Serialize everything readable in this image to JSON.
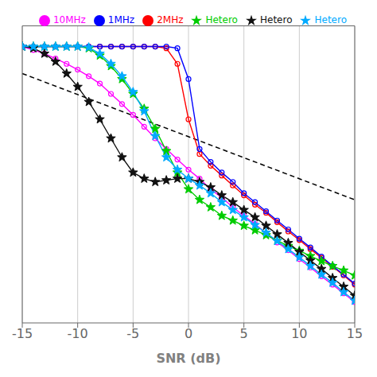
{
  "chart_data": {
    "type": "line",
    "xlabel": "SNR (dB)",
    "x": [
      -15,
      -14,
      -13,
      -12,
      -11,
      -10,
      -9,
      -8,
      -7,
      -6,
      -5,
      -4,
      -3,
      -2,
      -1,
      0,
      1,
      2,
      3,
      4,
      5,
      6,
      7,
      8,
      9,
      10,
      11,
      12,
      13,
      14,
      15
    ],
    "xlim": [
      -15,
      15
    ],
    "xticks": [
      -15,
      -10,
      -5,
      0,
      5,
      10,
      15
    ],
    "ylim": [
      0.03,
      5.0
    ],
    "yticks": [],
    "log": "y",
    "grid": true,
    "legend": "upper right",
    "tick_labels": "x",
    "series": [
      {
        "name": "10MHz",
        "color": "#ff00ff",
        "marker": "circle",
        "values": [
          3.5,
          3.3,
          3.1,
          2.85,
          2.6,
          2.35,
          2.1,
          1.85,
          1.55,
          1.3,
          1.08,
          0.88,
          0.72,
          0.6,
          0.5,
          0.42,
          0.36,
          0.3,
          0.26,
          0.22,
          0.19,
          0.165,
          0.14,
          0.12,
          0.105,
          0.09,
          0.078,
          0.067,
          0.058,
          0.05,
          0.043
        ]
      },
      {
        "name": "2MHz",
        "color": "#ff0000",
        "marker": "circle",
        "values": [
          3.5,
          3.5,
          3.5,
          3.5,
          3.5,
          3.5,
          3.5,
          3.5,
          3.5,
          3.5,
          3.5,
          3.5,
          3.5,
          3.4,
          2.6,
          1.0,
          0.55,
          0.45,
          0.38,
          0.32,
          0.27,
          0.23,
          0.2,
          0.17,
          0.145,
          0.125,
          0.107,
          0.092,
          0.079,
          0.068,
          0.058
        ]
      },
      {
        "name": "1MHz",
        "color": "#0000ff",
        "marker": "circle",
        "values": [
          3.5,
          3.5,
          3.5,
          3.5,
          3.5,
          3.5,
          3.5,
          3.5,
          3.5,
          3.5,
          3.5,
          3.5,
          3.5,
          3.5,
          3.4,
          2.0,
          0.6,
          0.48,
          0.4,
          0.34,
          0.28,
          0.24,
          0.205,
          0.175,
          0.15,
          0.128,
          0.11,
          0.094,
          0.08,
          0.069,
          0.059
        ]
      },
      {
        "name": "Hetero",
        "color": "#00cc00",
        "marker": "star",
        "values": [
          3.5,
          3.5,
          3.5,
          3.5,
          3.5,
          3.5,
          3.4,
          3.0,
          2.5,
          2.0,
          1.55,
          1.2,
          0.85,
          0.58,
          0.4,
          0.3,
          0.25,
          0.22,
          0.19,
          0.175,
          0.16,
          0.148,
          0.136,
          0.124,
          0.113,
          0.104,
          0.095,
          0.087,
          0.08,
          0.074,
          0.068
        ]
      },
      {
        "name": "Hetero",
        "color": "#111111",
        "marker": "star",
        "values": [
          3.5,
          3.4,
          3.1,
          2.7,
          2.2,
          1.75,
          1.35,
          1.0,
          0.72,
          0.52,
          0.4,
          0.36,
          0.34,
          0.35,
          0.36,
          0.36,
          0.34,
          0.31,
          0.27,
          0.24,
          0.21,
          0.185,
          0.16,
          0.138,
          0.119,
          0.102,
          0.088,
          0.076,
          0.065,
          0.056,
          0.048
        ]
      },
      {
        "name": "Hetero",
        "color": "#00aaff",
        "marker": "star",
        "values": [
          3.5,
          3.5,
          3.5,
          3.5,
          3.5,
          3.5,
          3.45,
          3.1,
          2.6,
          2.1,
          1.6,
          1.15,
          0.75,
          0.52,
          0.42,
          0.36,
          0.32,
          0.28,
          0.24,
          0.21,
          0.185,
          0.162,
          0.142,
          0.123,
          0.107,
          0.093,
          0.08,
          0.069,
          0.06,
          0.051,
          0.044
        ]
      }
    ],
    "reference_line": {
      "x": [
        -15,
        15
      ],
      "y": [
        2.2,
        0.25
      ],
      "line_style": "dashed",
      "color": "#000000"
    }
  }
}
